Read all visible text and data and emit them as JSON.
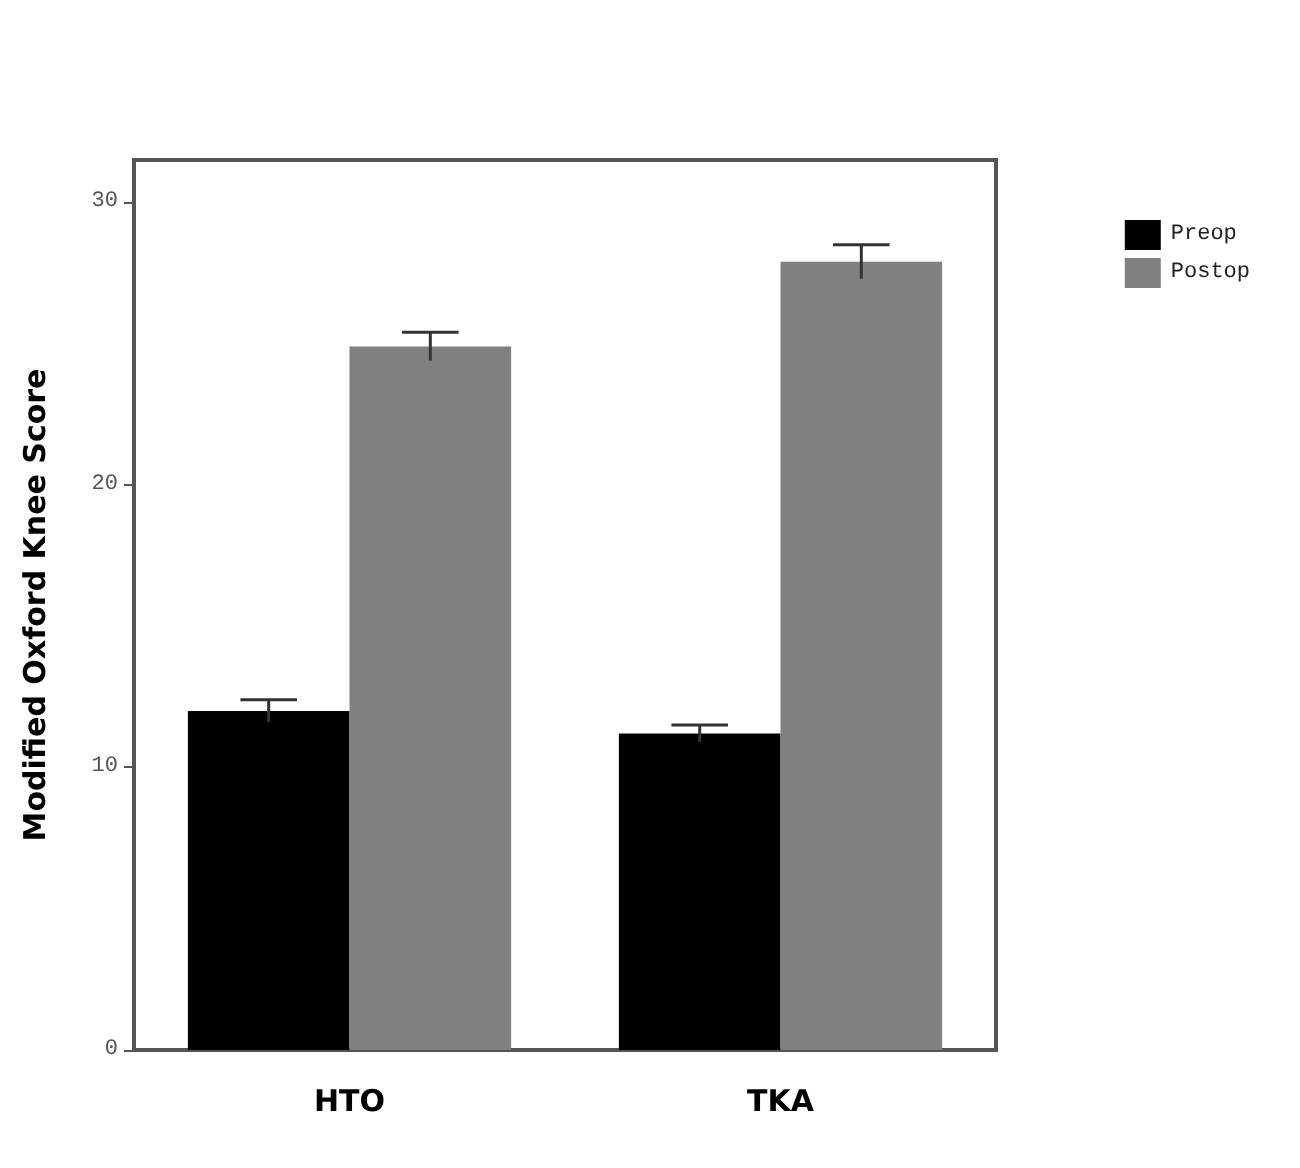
{
  "chart_data": {
    "type": "bar",
    "ylabel": "Modified Oxford Knee Score",
    "categories": [
      "HTO",
      "TKA"
    ],
    "series": [
      {
        "name": "Preop",
        "color": "#000000",
        "values": [
          12.0,
          11.2
        ],
        "errors": [
          0.4,
          0.3
        ]
      },
      {
        "name": "Postop",
        "color": "#808080",
        "values": [
          24.9,
          27.9
        ],
        "errors": [
          0.5,
          0.6
        ]
      }
    ],
    "ylim": [
      0,
      31.5
    ],
    "yticks": [
      0,
      10,
      20,
      30
    ],
    "grid": false,
    "legend": "top right"
  }
}
